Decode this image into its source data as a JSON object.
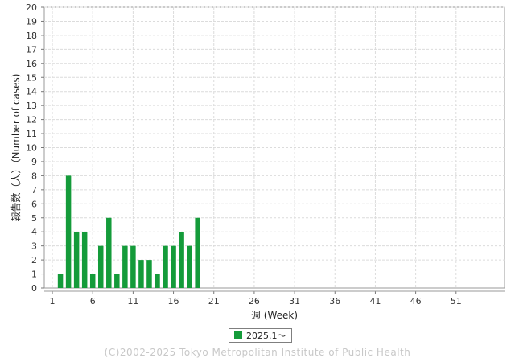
{
  "chart_data": {
    "type": "bar",
    "ylabel": "報告数（人）（Number of cases)",
    "xlabel": "週 (Week)",
    "ylim": [
      0,
      20
    ],
    "xlim": [
      0,
      57
    ],
    "yticks": [
      0,
      1,
      2,
      3,
      4,
      5,
      6,
      7,
      8,
      9,
      10,
      11,
      12,
      13,
      14,
      15,
      16,
      17,
      18,
      19,
      20
    ],
    "xticks": [
      1,
      6,
      11,
      16,
      21,
      26,
      31,
      36,
      41,
      46,
      51
    ],
    "grid": true,
    "legend_position": "bottom",
    "series": [
      {
        "name": "2025.1〜",
        "color": "#149b3a",
        "x": [
          1,
          2,
          3,
          4,
          5,
          6,
          7,
          8,
          9,
          10,
          11,
          12,
          13,
          14,
          15,
          16,
          17,
          18,
          19
        ],
        "values": [
          0,
          1,
          8,
          4,
          4,
          1,
          3,
          5,
          1,
          3,
          3,
          2,
          2,
          1,
          3,
          3,
          4,
          3,
          5
        ]
      }
    ]
  },
  "legend": {
    "label": "2025.1〜"
  },
  "footer": {
    "copyright": "(C)2002-2025 Tokyo Metropolitan Institute of Public Health"
  }
}
